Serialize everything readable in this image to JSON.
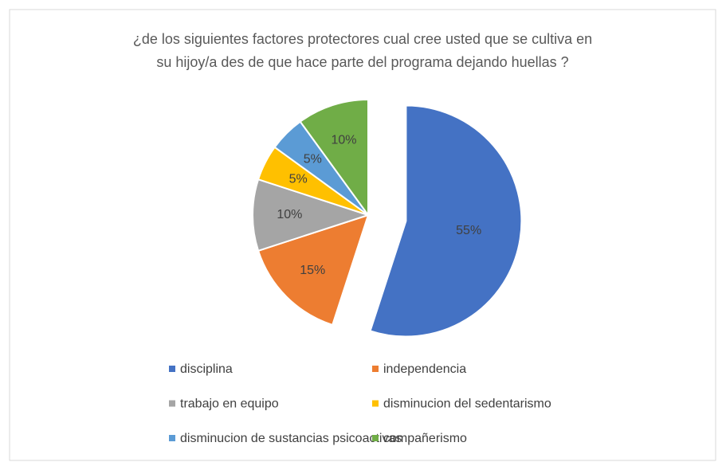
{
  "chart_data": {
    "type": "pie",
    "title": [
      "¿de los siguientes factores protectores cual cree usted que se cultiva en",
      "su hijoy/a des de que hace parte del programa dejando huellas ?"
    ],
    "categories": [
      "disciplina",
      "independencia",
      "trabajo en equipo",
      "disminucion del sedentarismo",
      "disminucion de sustancias psicoactivas",
      "compañerismo"
    ],
    "values": [
      55,
      15,
      10,
      5,
      5,
      10
    ],
    "value_labels": [
      "55%",
      "15%",
      "10%",
      "5%",
      "5%",
      "10%"
    ],
    "colors": [
      "#4472c4",
      "#ed7d31",
      "#a5a5a5",
      "#ffc000",
      "#5b9bd5",
      "#70ad47"
    ],
    "legend": "bottom"
  }
}
